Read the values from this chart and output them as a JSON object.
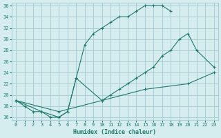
{
  "xlabel": "Humidex (Indice chaleur)",
  "bg_color": "#d6edf0",
  "grid_color": "#aacdd6",
  "line_color": "#1a7a6a",
  "xlim": [
    -0.5,
    23.5
  ],
  "ylim": [
    15.5,
    36.5
  ],
  "xticks": [
    0,
    1,
    2,
    3,
    4,
    5,
    6,
    7,
    8,
    9,
    10,
    11,
    12,
    13,
    14,
    15,
    16,
    17,
    18,
    19,
    20,
    21,
    22,
    23
  ],
  "yticks": [
    16,
    18,
    20,
    22,
    24,
    26,
    28,
    30,
    32,
    34,
    36
  ],
  "curve1_x": [
    0,
    1,
    2,
    3,
    4,
    5,
    6,
    7,
    8,
    9,
    10,
    11,
    12,
    13,
    14,
    15,
    16,
    17,
    18
  ],
  "curve1_y": [
    19,
    18,
    17,
    17,
    16,
    16,
    17,
    23,
    29,
    31,
    32,
    33,
    34,
    34,
    35,
    36,
    36,
    36,
    35
  ],
  "curve2_x": [
    0,
    3,
    5,
    6,
    7,
    10,
    11,
    12,
    13,
    14,
    15,
    16,
    17,
    18,
    19,
    20,
    21,
    23
  ],
  "curve2_y": [
    19,
    17,
    16,
    17,
    23,
    19,
    20,
    21,
    22,
    23,
    24,
    25,
    27,
    28,
    30,
    31,
    28,
    25
  ],
  "curve3_x": [
    0,
    5,
    10,
    15,
    20,
    23
  ],
  "curve3_y": [
    19,
    17,
    19,
    21,
    22,
    24
  ]
}
